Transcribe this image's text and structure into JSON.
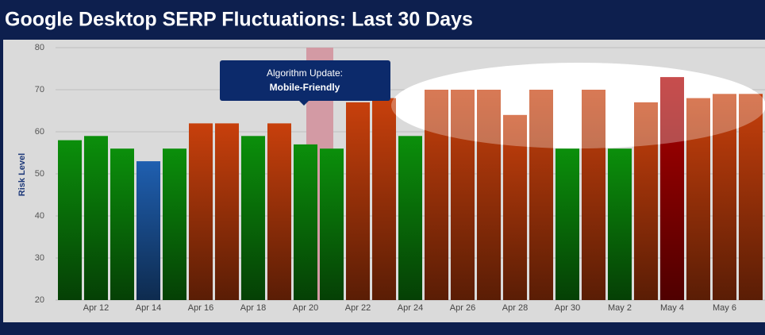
{
  "chart_data": {
    "type": "bar",
    "title": "Google Desktop SERP Fluctuations: Last 30 Days",
    "y_label": "Risk Level",
    "annotation": {
      "title": "Algorithm Update:",
      "text": "Mobile-Friendly"
    },
    "categories": [
      null,
      "Apr 12",
      null,
      "Apr 14",
      null,
      "Apr 16",
      null,
      "Apr 18",
      null,
      "Apr 20",
      null,
      "Apr 22",
      null,
      "Apr 24",
      null,
      "Apr 26",
      null,
      "Apr 28",
      null,
      "Apr 30",
      null,
      "May 2",
      null,
      "May 4",
      null,
      "May 6",
      null
    ],
    "values": [
      58,
      59,
      56,
      53,
      56,
      62,
      62,
      59,
      62,
      57,
      56,
      67,
      68,
      59,
      70,
      70,
      70,
      64,
      70,
      56,
      70,
      56,
      67,
      73,
      68,
      69,
      69
    ],
    "colors": [
      "#0b8f0b",
      "#0b8f0b",
      "#0b8f0b",
      "#1f5fb0",
      "#0b8f0b",
      "#c8400c",
      "#c8400c",
      "#0b8f0b",
      "#c8400c",
      "#0b8f0b",
      "#0b8f0b",
      "#c8400c",
      "#c8400c",
      "#0b8f0b",
      "#c8400c",
      "#c8400c",
      "#c8400c",
      "#c8400c",
      "#c8400c",
      "#0b8f0b",
      "#c8400c",
      "#0b8f0b",
      "#c8400c",
      "#b00000",
      "#c8400c",
      "#c8400c",
      "#c8400c"
    ],
    "ylim": [
      20,
      80
    ],
    "yticks": [
      20,
      30,
      40,
      50,
      60,
      70,
      80
    ],
    "grid": true
  }
}
